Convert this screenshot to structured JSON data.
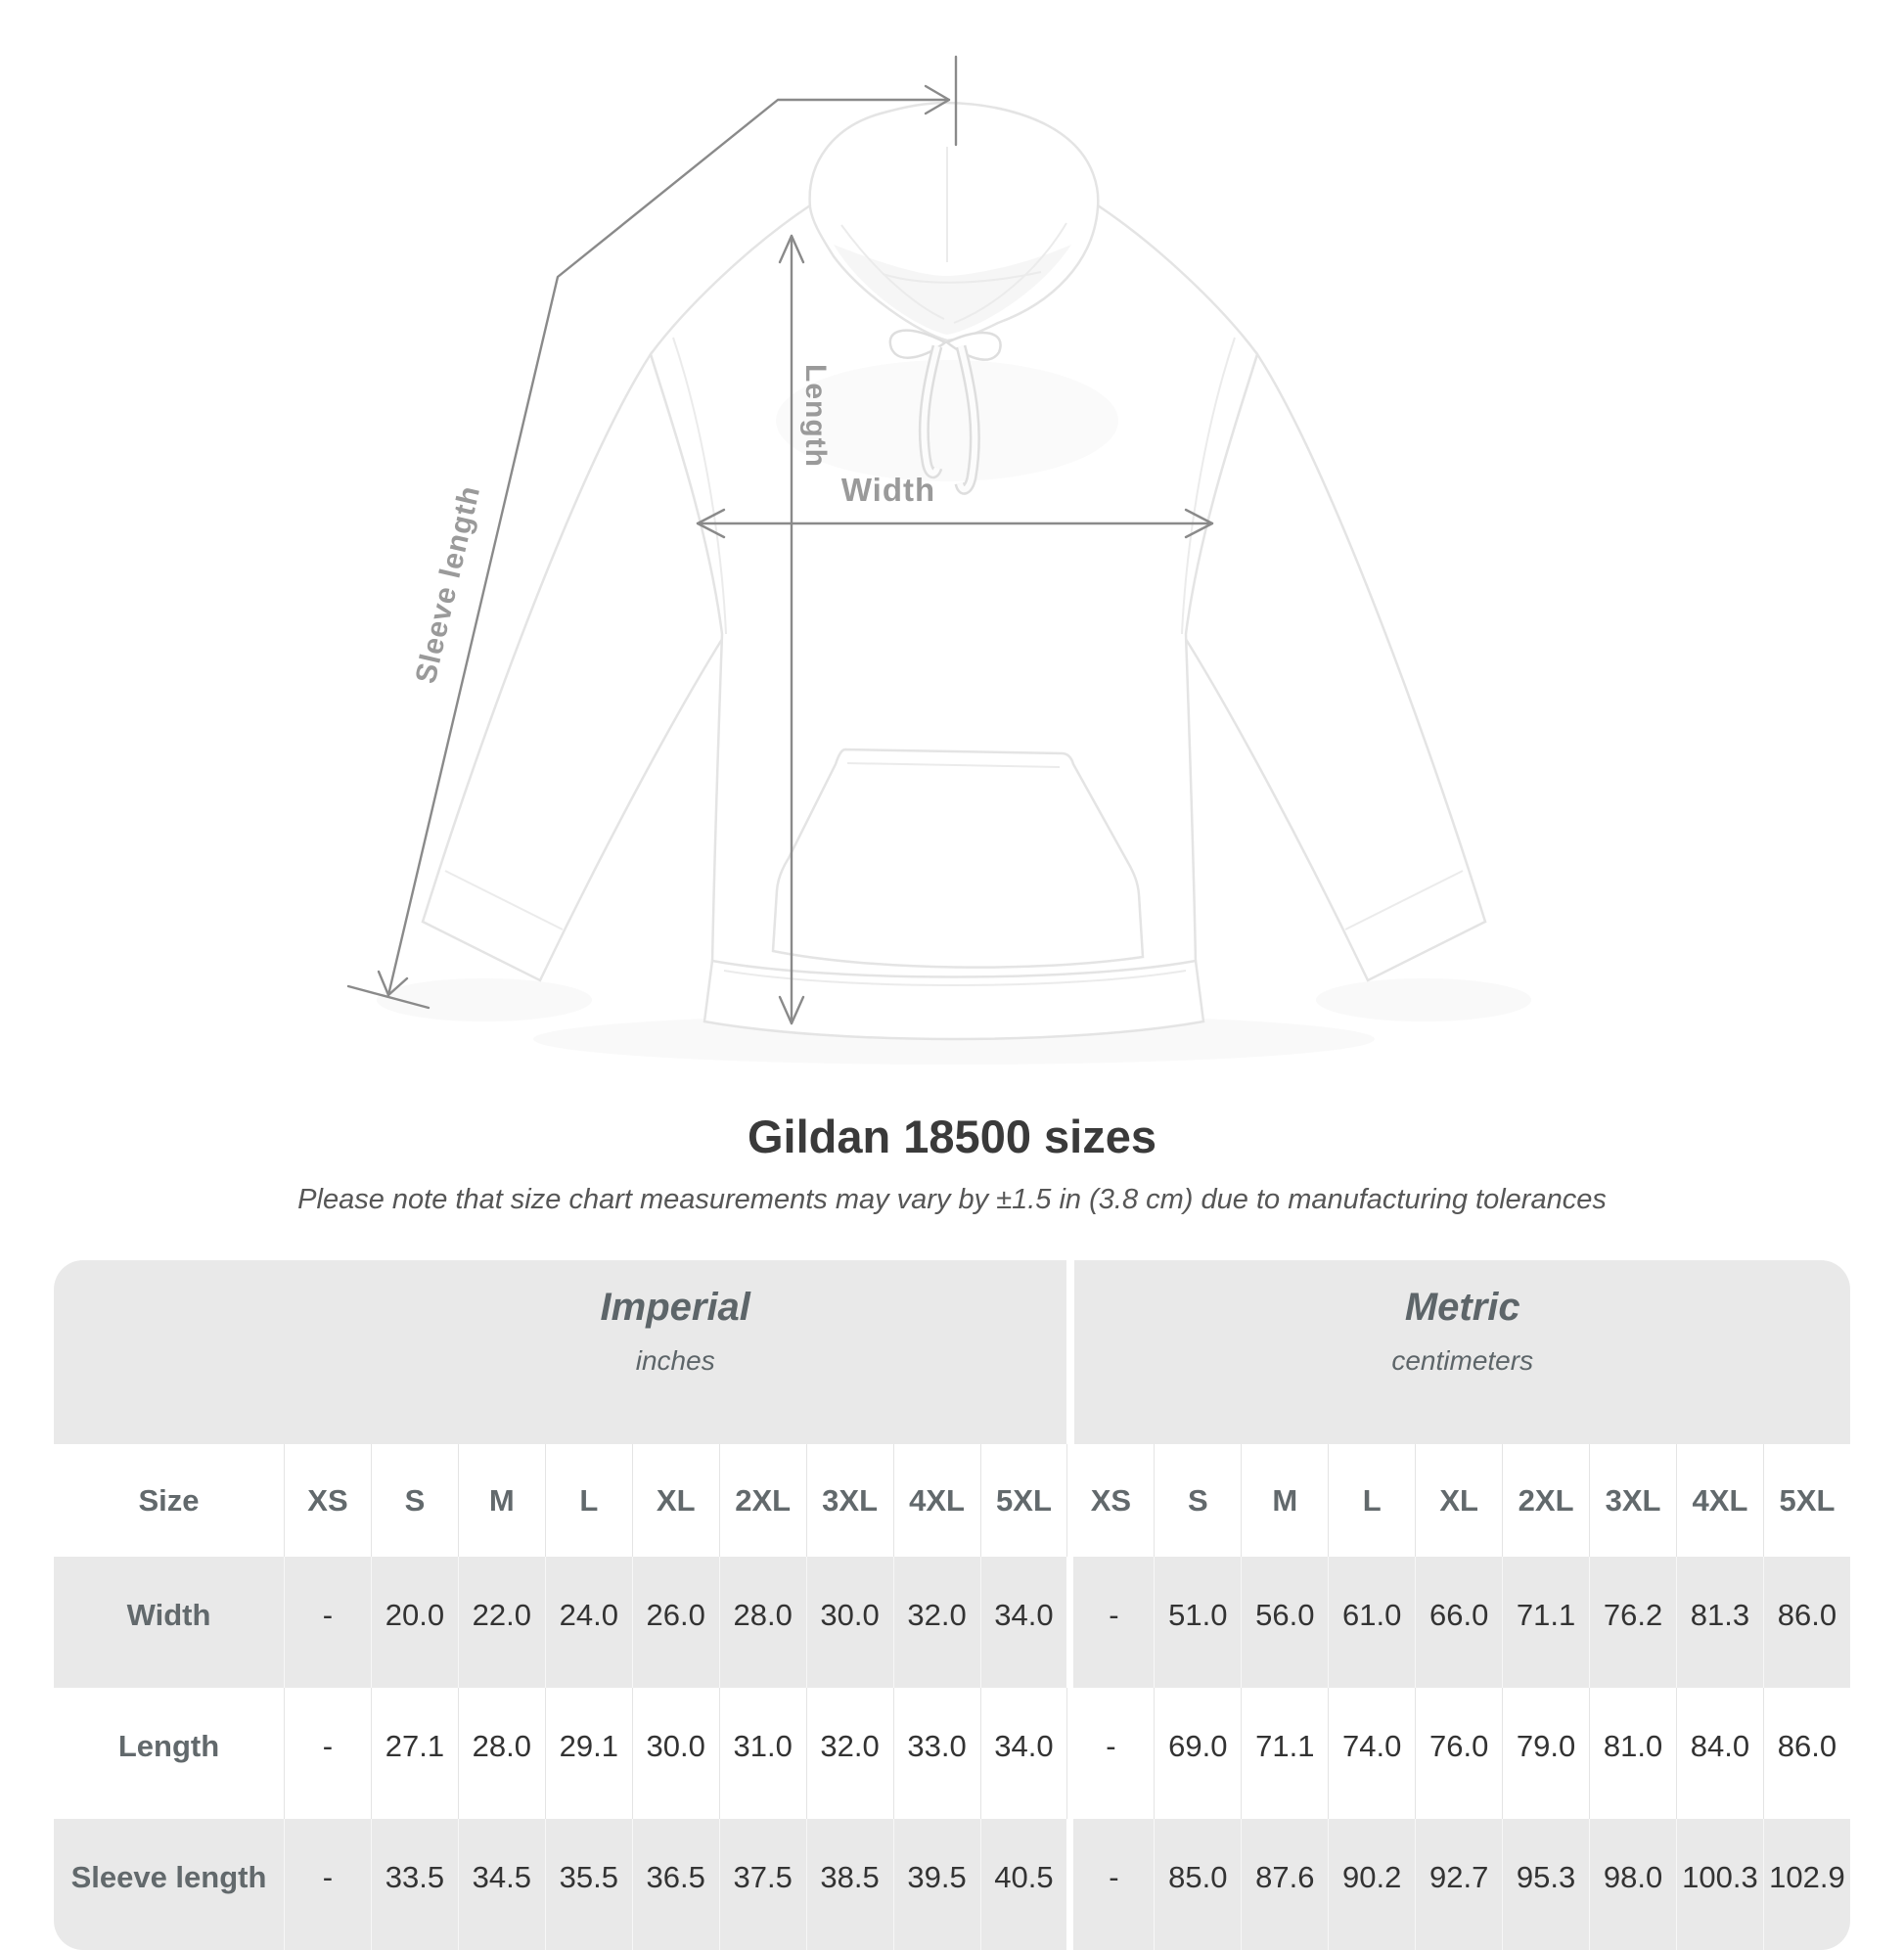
{
  "page": {
    "title": "Gildan 18500 sizes",
    "subtitle": "Please note that size chart measurements may vary by ±1.5 in (3.8 cm) due to manufacturing tolerances"
  },
  "diagram": {
    "labels": {
      "sleeve_length": "Sleeve length",
      "length": "Length",
      "width": "Width"
    },
    "line_color": "#8a8a8a",
    "label_color": "#9a9a9a"
  },
  "table": {
    "size_header": "Size",
    "unit_groups": [
      {
        "name": "Imperial",
        "unit": "inches"
      },
      {
        "name": "Metric",
        "unit": "centimeters"
      }
    ],
    "sizes": [
      "XS",
      "S",
      "M",
      "L",
      "XL",
      "2XL",
      "3XL",
      "4XL",
      "5XL"
    ],
    "rows": [
      {
        "label": "Width",
        "imperial": [
          "-",
          "20.0",
          "22.0",
          "24.0",
          "26.0",
          "28.0",
          "30.0",
          "32.0",
          "34.0"
        ],
        "metric": [
          "-",
          "51.0",
          "56.0",
          "61.0",
          "66.0",
          "71.1",
          "76.2",
          "81.3",
          "86.0"
        ]
      },
      {
        "label": "Length",
        "imperial": [
          "-",
          "27.1",
          "28.0",
          "29.1",
          "30.0",
          "31.0",
          "32.0",
          "33.0",
          "34.0"
        ],
        "metric": [
          "-",
          "69.0",
          "71.1",
          "74.0",
          "76.0",
          "79.0",
          "81.0",
          "84.0",
          "86.0"
        ]
      },
      {
        "label": "Sleeve length",
        "imperial": [
          "-",
          "33.5",
          "34.5",
          "35.5",
          "36.5",
          "37.5",
          "38.5",
          "39.5",
          "40.5"
        ],
        "metric": [
          "-",
          "85.0",
          "87.6",
          "90.2",
          "92.7",
          "95.3",
          "98.0",
          "100.3",
          "102.9"
        ]
      }
    ],
    "colors": {
      "band_background": "#e9e9e9",
      "header_text": "#62696c",
      "value_text": "#333333"
    }
  }
}
